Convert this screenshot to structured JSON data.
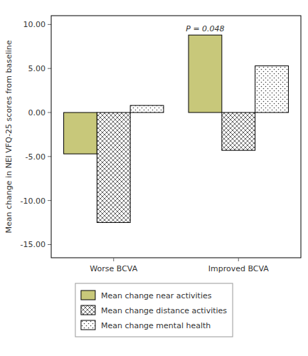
{
  "chart_data": {
    "type": "bar",
    "categories": [
      "Worse BCVA",
      "Improved BCVA"
    ],
    "series": [
      {
        "name": "Mean change near activities",
        "color": "#c8c87a",
        "values": [
          -4.7,
          8.8
        ]
      },
      {
        "name": "Mean change distance activities",
        "color": "#ffffff",
        "values": [
          -12.5,
          -4.3
        ]
      },
      {
        "name": "Mean change mental health",
        "color": "#ffffff",
        "values": [
          0.8,
          5.3
        ]
      }
    ],
    "ylabel": "Mean change in NEI VFQ-25 scores from baseline",
    "ylim": [
      -16.5,
      11.0
    ],
    "yticks": [
      {
        "value": -15.0,
        "label": "-15.00"
      },
      {
        "value": -10.0,
        "label": "-10.00"
      },
      {
        "value": -5.0,
        "label": "-5.00"
      },
      {
        "value": 0.0,
        "label": "0.00"
      },
      {
        "value": 5.0,
        "label": "5.00"
      },
      {
        "value": 10.0,
        "label": "10.00"
      }
    ],
    "annotations": [
      {
        "text": "P = 0.048",
        "category": "Improved BCVA",
        "series": "Mean change near activities"
      }
    ],
    "grid": false,
    "legend": "bottom"
  }
}
